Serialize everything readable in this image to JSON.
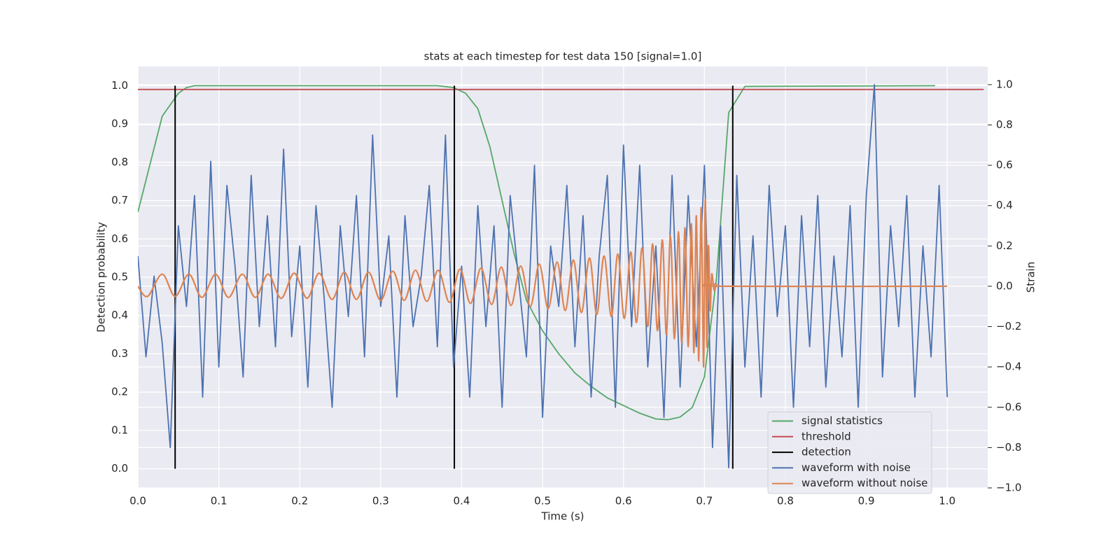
{
  "chart_data": {
    "type": "line",
    "title": "stats at each timestep for test data 150 [signal=1.0]",
    "xlabel": "Time (s)",
    "ylabel": "Detection probability",
    "y2label": "Strain",
    "xlim": [
      0,
      1.05
    ],
    "xticks": [
      {
        "value": 0,
        "label": "0.0"
      },
      0.1,
      0.2,
      0.3,
      0.4,
      0.5,
      0.6,
      0.7,
      0.8,
      0.9,
      {
        "value": 1,
        "label": "1.0"
      }
    ],
    "ylim": [
      -0.05,
      1.05
    ],
    "yticks": [
      {
        "value": 0,
        "label": "0.0"
      },
      0.1,
      0.2,
      0.3,
      0.4,
      0.5,
      0.6,
      0.7,
      0.8,
      0.9,
      {
        "value": 1,
        "label": "1.0"
      }
    ],
    "y2lim": [
      -1.0,
      1.09
    ],
    "y2ticks": [
      {
        "value": -1,
        "label": "−1.0"
      },
      {
        "value": -0.8,
        "label": "−0.8"
      },
      {
        "value": -0.6,
        "label": "−0.6"
      },
      {
        "value": -0.4,
        "label": "−0.4"
      },
      {
        "value": -0.2,
        "label": "−0.2"
      },
      {
        "value": 0,
        "label": "0.0"
      },
      0.2,
      0.4,
      0.6,
      0.8,
      {
        "value": 1,
        "label": "1.0"
      }
    ],
    "grid": true,
    "legend": "lower right",
    "series": [
      {
        "name": "signal statistics",
        "color": "#55a868",
        "x": [
          0,
          0.03,
          0.05,
          0.06,
          0.07,
          0.37,
          0.39,
          0.405,
          0.42,
          0.435,
          0.45,
          0.465,
          0.48,
          0.5,
          0.52,
          0.54,
          0.56,
          0.58,
          0.6,
          0.62,
          0.64,
          0.655,
          0.67,
          0.685,
          0.7,
          0.715,
          0.73,
          0.75,
          0.985
        ],
        "values": [
          0.67,
          0.92,
          0.98,
          0.995,
          1.0,
          1.0,
          0.995,
          0.98,
          0.94,
          0.84,
          0.7,
          0.56,
          0.44,
          0.36,
          0.3,
          0.25,
          0.215,
          0.185,
          0.165,
          0.145,
          0.13,
          0.128,
          0.135,
          0.16,
          0.24,
          0.5,
          0.93,
          0.998,
          1.0
        ]
      },
      {
        "name": "threshold",
        "color": "#c44e52",
        "x": [
          0,
          1.045
        ],
        "values": [
          0.99,
          0.99
        ]
      },
      {
        "name": "detection",
        "color": "#000000",
        "x": [
          0.046,
          0.391,
          0.735
        ],
        "ymin": 0,
        "ymax": 1
      },
      {
        "name": "waveform with noise",
        "color": "#4c72b0",
        "axis": "y2",
        "x": [
          0,
          0.01,
          0.02,
          0.03,
          0.04,
          0.05,
          0.06,
          0.07,
          0.08,
          0.09,
          0.1,
          0.11,
          0.12,
          0.13,
          0.14,
          0.15,
          0.16,
          0.17,
          0.18,
          0.19,
          0.2,
          0.21,
          0.22,
          0.23,
          0.24,
          0.25,
          0.26,
          0.27,
          0.28,
          0.29,
          0.3,
          0.31,
          0.32,
          0.33,
          0.34,
          0.35,
          0.36,
          0.37,
          0.38,
          0.39,
          0.4,
          0.41,
          0.42,
          0.43,
          0.44,
          0.45,
          0.46,
          0.47,
          0.48,
          0.49,
          0.5,
          0.51,
          0.52,
          0.53,
          0.54,
          0.55,
          0.56,
          0.57,
          0.58,
          0.59,
          0.6,
          0.61,
          0.62,
          0.63,
          0.64,
          0.65,
          0.66,
          0.67,
          0.68,
          0.69,
          0.7,
          0.71,
          0.72,
          0.73,
          0.74,
          0.75,
          0.76,
          0.77,
          0.78,
          0.79,
          0.8,
          0.81,
          0.82,
          0.83,
          0.84,
          0.85,
          0.86,
          0.87,
          0.88,
          0.89,
          0.9,
          0.91,
          0.92,
          0.93,
          0.94,
          0.95,
          0.96,
          0.97,
          0.98,
          0.99,
          1.0
        ],
        "values": [
          0.15,
          -0.35,
          0.05,
          -0.28,
          -0.8,
          0.3,
          -0.1,
          0.45,
          -0.55,
          0.62,
          -0.4,
          0.5,
          0.1,
          -0.45,
          0.55,
          -0.2,
          0.35,
          -0.3,
          0.68,
          -0.25,
          0.2,
          -0.5,
          0.4,
          -0.05,
          -0.6,
          0.3,
          -0.15,
          0.45,
          -0.35,
          0.75,
          -0.1,
          0.25,
          -0.55,
          0.35,
          -0.2,
          0.05,
          0.5,
          -0.3,
          0.75,
          -0.4,
          0.1,
          -0.55,
          0.4,
          -0.2,
          0.3,
          -0.6,
          0.45,
          0.05,
          -0.35,
          0.6,
          -0.65,
          0.2,
          -0.1,
          0.5,
          -0.3,
          0.35,
          -0.55,
          0.15,
          0.55,
          -0.6,
          0.7,
          -0.2,
          0.6,
          -0.4,
          0.2,
          -0.65,
          0.55,
          -0.5,
          0.45,
          -0.3,
          0.6,
          -0.8,
          0.3,
          -0.9,
          0.55,
          -0.4,
          0.25,
          -0.55,
          0.5,
          -0.15,
          0.3,
          -0.6,
          0.35,
          -0.3,
          0.45,
          -0.5,
          0.15,
          -0.35,
          0.4,
          -0.6,
          0.45,
          1.0,
          -0.45,
          0.3,
          -0.2,
          0.45,
          -0.55,
          0.2,
          -0.35,
          0.5,
          -0.55
        ]
      },
      {
        "name": "waveform without noise",
        "color": "#dd8452",
        "axis": "y2",
        "x": [
          0,
          0.012,
          0.03,
          0.046,
          0.063,
          0.079,
          0.096,
          0.112,
          0.129,
          0.145,
          0.161,
          0.177,
          0.193,
          0.209,
          0.224,
          0.24,
          0.255,
          0.27,
          0.285,
          0.3,
          0.315,
          0.329,
          0.343,
          0.357,
          0.371,
          0.385,
          0.398,
          0.411,
          0.424,
          0.437,
          0.449,
          0.461,
          0.473,
          0.485,
          0.496,
          0.507,
          0.518,
          0.528,
          0.538,
          0.548,
          0.558,
          0.567,
          0.576,
          0.585,
          0.593,
          0.601,
          0.609,
          0.616,
          0.623,
          0.63,
          0.636,
          0.642,
          0.648,
          0.653,
          0.658,
          0.663,
          0.668,
          0.672,
          0.676,
          0.68,
          0.684,
          0.687,
          0.69,
          0.693,
          0.696,
          0.699,
          0.701,
          0.703,
          0.705,
          0.707,
          0.709,
          0.712,
          0.715,
          0.72,
          1.0
        ],
        "values": [
          0,
          -0.05,
          0.06,
          -0.05,
          0.06,
          -0.055,
          0.06,
          -0.055,
          0.06,
          -0.055,
          0.06,
          -0.06,
          0.065,
          -0.06,
          0.065,
          -0.065,
          0.07,
          -0.065,
          0.07,
          -0.07,
          0.075,
          -0.07,
          0.08,
          -0.075,
          0.08,
          -0.08,
          0.085,
          -0.085,
          0.09,
          -0.09,
          0.095,
          -0.095,
          0.1,
          -0.1,
          0.11,
          -0.11,
          0.12,
          -0.12,
          0.13,
          -0.13,
          0.14,
          -0.14,
          0.15,
          -0.15,
          0.16,
          -0.16,
          0.17,
          -0.18,
          0.19,
          -0.2,
          0.21,
          -0.22,
          0.23,
          -0.24,
          0.25,
          -0.26,
          0.27,
          -0.28,
          0.29,
          -0.3,
          0.31,
          -0.33,
          0.35,
          -0.37,
          0.39,
          -0.4,
          0.43,
          -0.3,
          0.2,
          -0.12,
          0.06,
          -0.02,
          0.01,
          0,
          0
        ]
      }
    ]
  }
}
